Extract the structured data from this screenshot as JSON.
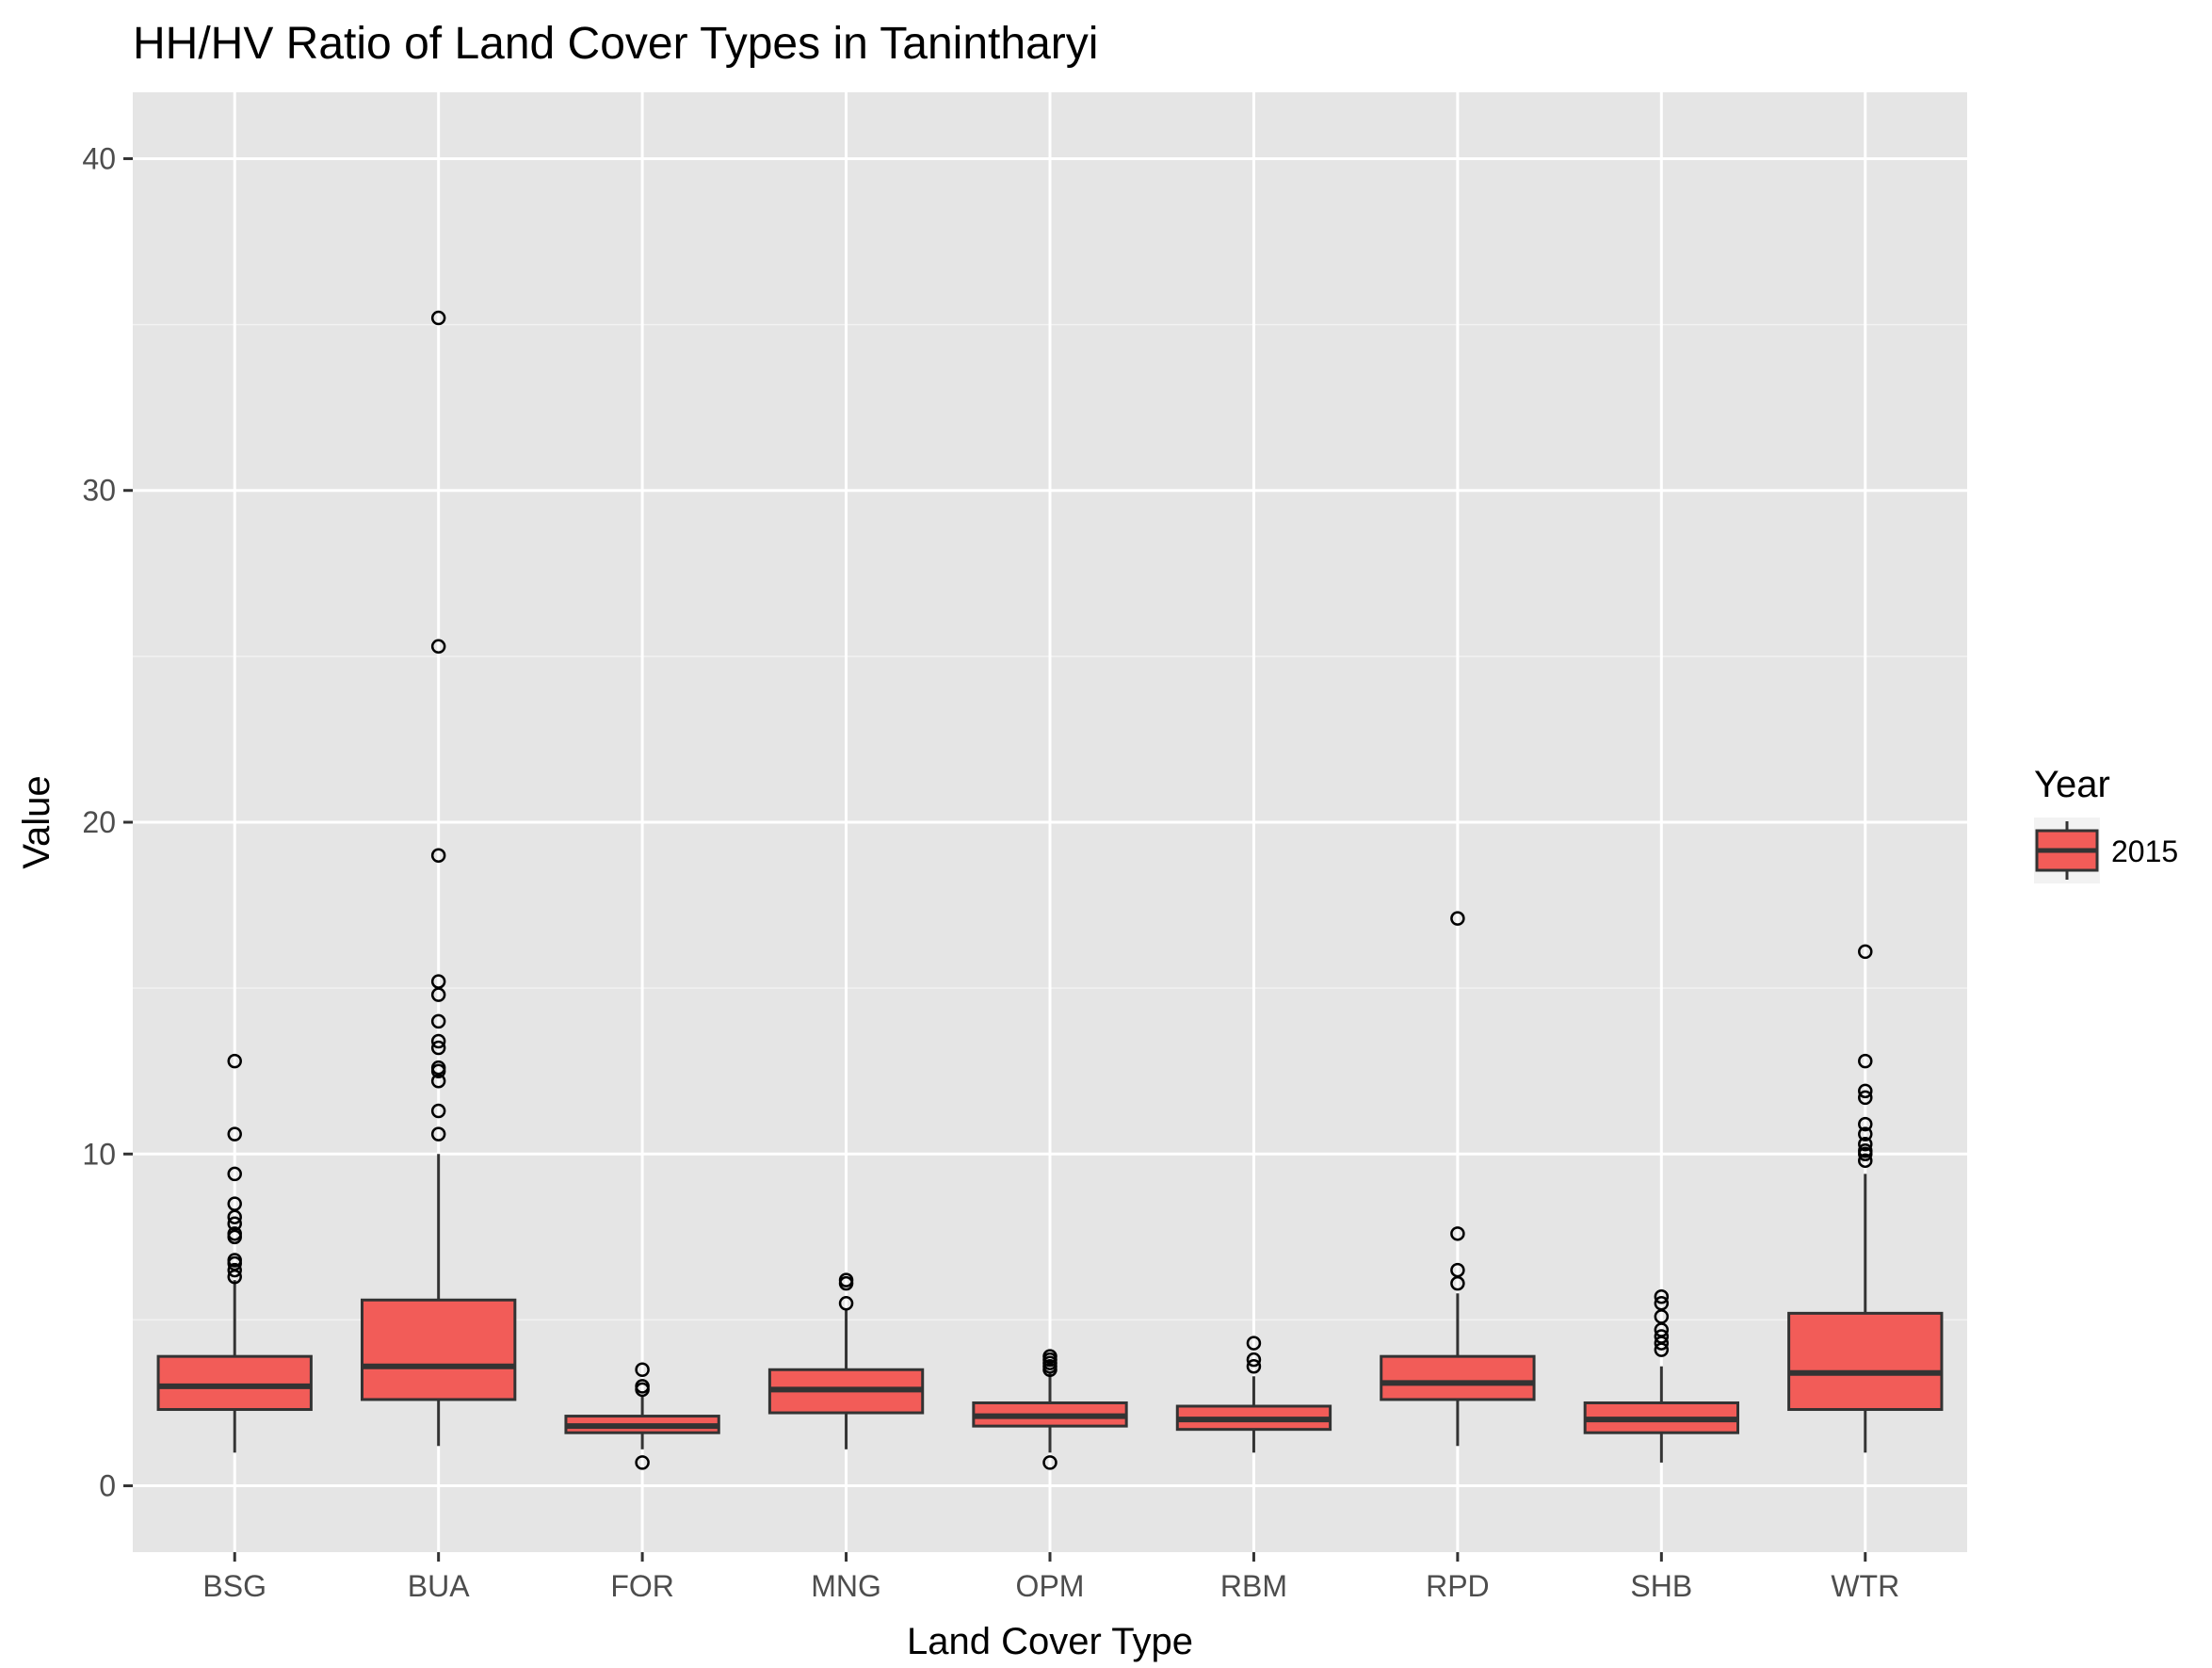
{
  "chart_data": {
    "type": "boxplot",
    "title": "HH/HV Ratio of Land Cover Types in Tanintharyi",
    "xlabel": "Land Cover Type",
    "ylabel": "Value",
    "ylim": [
      -2,
      42
    ],
    "yticks": [
      0,
      10,
      20,
      30,
      40
    ],
    "grid": true,
    "legend": {
      "title": "Year",
      "position": "right",
      "entries": [
        "2015"
      ]
    },
    "series": [
      {
        "name": "2015",
        "color": "#F25C58"
      }
    ],
    "categories": [
      "BSG",
      "BUA",
      "FOR",
      "MNG",
      "OPM",
      "RBM",
      "RPD",
      "SHB",
      "WTR"
    ],
    "boxes": [
      {
        "category": "BSG",
        "whisker_low": 1.0,
        "q1": 2.3,
        "median": 3.0,
        "q3": 3.9,
        "whisker_high": 6.2,
        "outliers": [
          6.3,
          6.5,
          6.7,
          6.8,
          7.5,
          7.6,
          7.9,
          8.1,
          8.5,
          9.4,
          10.6,
          12.8
        ]
      },
      {
        "category": "BUA",
        "whisker_low": 1.2,
        "q1": 2.6,
        "median": 3.6,
        "q3": 5.6,
        "whisker_high": 10.0,
        "outliers": [
          10.6,
          11.3,
          12.2,
          12.5,
          12.6,
          13.2,
          13.4,
          14.0,
          14.8,
          15.2,
          19.0,
          25.3,
          35.2
        ]
      },
      {
        "category": "FOR",
        "whisker_low": 1.1,
        "q1": 1.6,
        "median": 1.8,
        "q3": 2.1,
        "whisker_high": 2.7,
        "outliers": [
          0.7,
          2.9,
          3.0,
          3.5
        ]
      },
      {
        "category": "MNG",
        "whisker_low": 1.1,
        "q1": 2.2,
        "median": 2.9,
        "q3": 3.5,
        "whisker_high": 5.3,
        "outliers": [
          5.5,
          6.1,
          6.2
        ]
      },
      {
        "category": "OPM",
        "whisker_low": 1.0,
        "q1": 1.8,
        "median": 2.1,
        "q3": 2.5,
        "whisker_high": 3.4,
        "outliers": [
          0.7,
          3.5,
          3.6,
          3.7,
          3.8,
          3.9
        ]
      },
      {
        "category": "RBM",
        "whisker_low": 1.0,
        "q1": 1.7,
        "median": 2.0,
        "q3": 2.4,
        "whisker_high": 3.3,
        "outliers": [
          3.6,
          3.8,
          4.3
        ]
      },
      {
        "category": "RPD",
        "whisker_low": 1.2,
        "q1": 2.6,
        "median": 3.1,
        "q3": 3.9,
        "whisker_high": 5.8,
        "outliers": [
          6.1,
          6.5,
          7.6,
          17.1
        ]
      },
      {
        "category": "SHB",
        "whisker_low": 0.7,
        "q1": 1.6,
        "median": 2.0,
        "q3": 2.5,
        "whisker_high": 3.6,
        "outliers": [
          4.1,
          4.3,
          4.5,
          4.7,
          5.1,
          5.5,
          5.7
        ]
      },
      {
        "category": "WTR",
        "whisker_low": 1.0,
        "q1": 2.3,
        "median": 3.4,
        "q3": 5.2,
        "whisker_high": 9.4,
        "outliers": [
          9.8,
          10.0,
          10.1,
          10.3,
          10.6,
          10.9,
          11.7,
          11.9,
          12.8,
          16.1
        ]
      }
    ]
  }
}
